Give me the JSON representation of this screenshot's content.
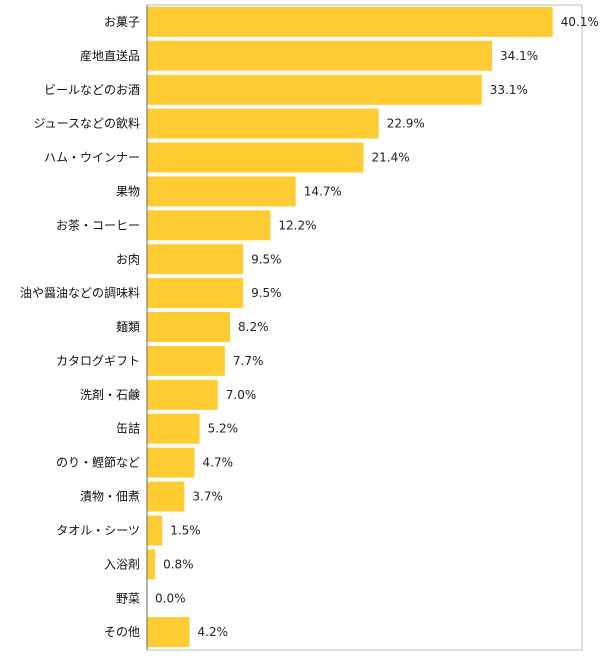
{
  "chart_data": {
    "type": "bar",
    "orientation": "horizontal",
    "title": "",
    "xlabel": "",
    "ylabel": "",
    "xlim": [
      0,
      43
    ],
    "grid": false,
    "legend": "none",
    "bar_color": "#FFCC33",
    "value_suffix": "%",
    "categories": [
      "お菓子",
      "産地直送品",
      "ビールなどのお酒",
      "ジュースなどの飲料",
      "ハム・ウインナー",
      "果物",
      "お茶・コーヒー",
      "お肉",
      "油や醤油などの調味料",
      "麺類",
      "カタログギフト",
      "洗剤・石鹸",
      "缶詰",
      "のり・鰹節など",
      "漬物・佃煮",
      "タオル・シーツ",
      "入浴剤",
      "野菜",
      "その他"
    ],
    "values": [
      40.1,
      34.1,
      33.1,
      22.9,
      21.4,
      14.7,
      12.2,
      9.5,
      9.5,
      8.2,
      7.7,
      7.0,
      5.2,
      4.7,
      3.7,
      1.5,
      0.8,
      0.0,
      4.2
    ]
  }
}
